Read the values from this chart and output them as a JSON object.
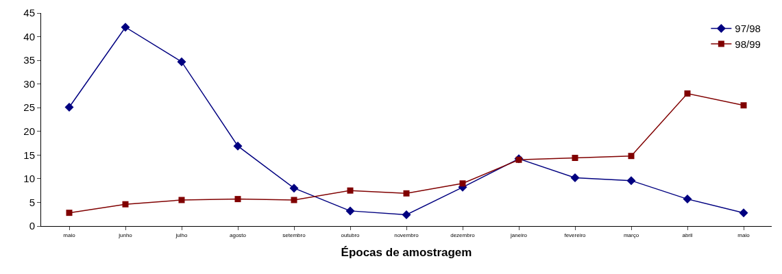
{
  "chart_data": {
    "type": "line",
    "xlabel": "Épocas de amostragem",
    "categories": [
      "maio",
      "junho",
      "julho",
      "agosto",
      "setembro",
      "outubro",
      "novembro",
      "dezembro",
      "janeiro",
      "fevereiro",
      "março",
      "abril",
      "maio"
    ],
    "series": [
      {
        "name": "97/98",
        "color": "#000080",
        "marker": "diamond",
        "values": [
          25.1,
          42,
          34.7,
          16.9,
          8,
          3.2,
          2.4,
          8.2,
          14.2,
          10.2,
          9.6,
          5.7,
          2.8
        ]
      },
      {
        "name": "98/99",
        "color": "#800000",
        "marker": "square",
        "values": [
          2.8,
          4.6,
          5.5,
          5.7,
          5.5,
          7.5,
          6.9,
          9,
          14,
          14.4,
          14.8,
          28,
          25.5
        ]
      }
    ],
    "ylim": [
      0,
      45
    ],
    "yticks": [
      0,
      5,
      10,
      15,
      20,
      25,
      30,
      35,
      40,
      45
    ],
    "legend": "top right",
    "line_style": "solid"
  }
}
